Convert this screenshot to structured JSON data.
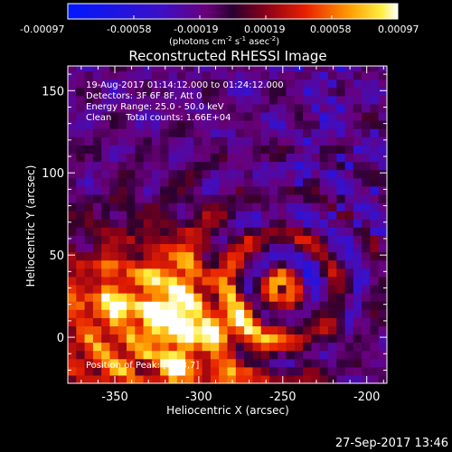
{
  "chart_data": {
    "type": "heatmap",
    "title": "Reconstructed RHESSI Image",
    "xlabel": "Heliocentric X (arcsec)",
    "ylabel": "Heliocentric Y (arcsec)",
    "xlim": [
      -378,
      -188
    ],
    "ylim": [
      -28,
      165
    ],
    "x_ticks": [
      -350,
      -300,
      -250,
      -200
    ],
    "y_ticks": [
      0,
      50,
      100,
      150
    ],
    "colorbar": {
      "range": [
        -0.00097,
        0.00097
      ],
      "ticks": [
        "-0.00097",
        "-0.00058",
        "-0.00019",
        "0.00019",
        "0.00058",
        "0.00097"
      ],
      "units_prefix": "(photons cm",
      "units_sup1": "-2",
      "units_mid1": " s",
      "units_sup2": "-1",
      "units_mid2": " asec",
      "units_sup3": "-2",
      "units_suffix": ")"
    },
    "annotations": [
      "19-Aug-2017 01:14:12.000 to 01:24:12.000",
      "Detectors: 3F 6F 8F, Att 0",
      "Energy Range: 25.0 - 50.0 keV",
      "Clean     Total counts: 1.66E+04"
    ],
    "peak_label": "Position of Peak: [-323,7]",
    "peak": [
      -323,
      7
    ],
    "timestamp": "27-Sep-2017 13:46"
  }
}
